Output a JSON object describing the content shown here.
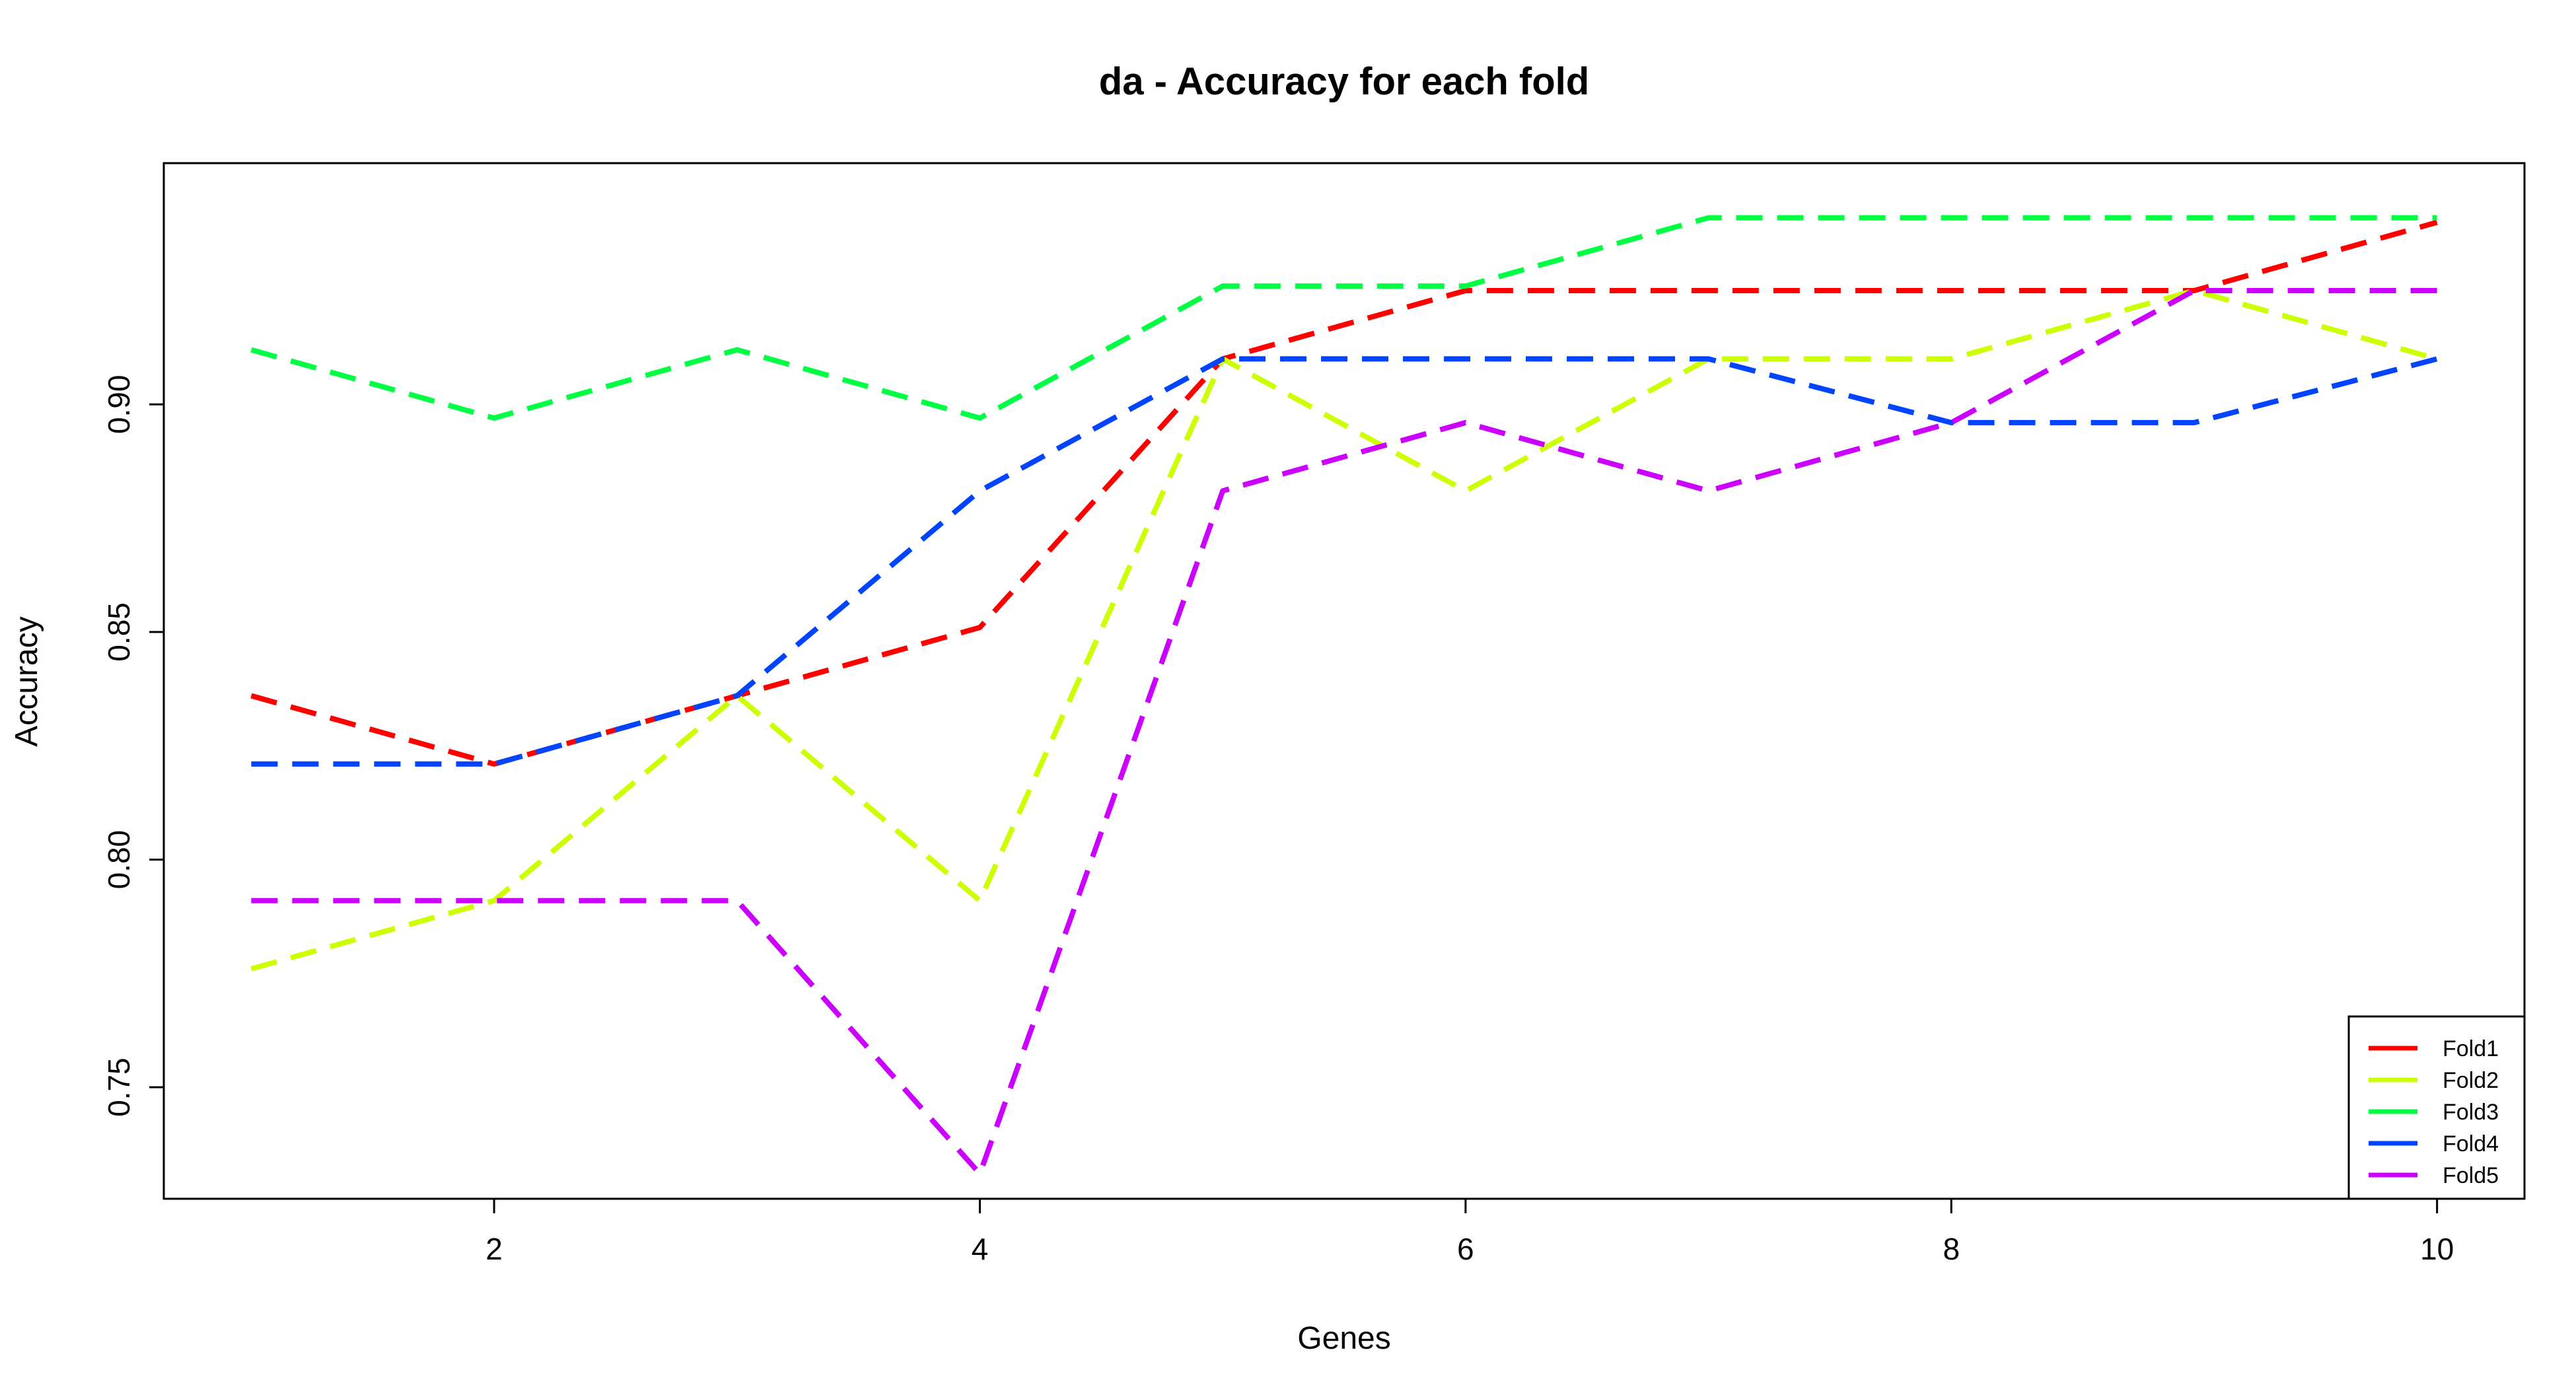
{
  "chart_data": {
    "type": "line",
    "title": "da - Accuracy for each fold",
    "xlabel": "Genes",
    "ylabel": "Accuracy",
    "x": [
      1,
      2,
      3,
      4,
      5,
      6,
      7,
      8,
      9,
      10
    ],
    "xlim": [
      0.64,
      10.36
    ],
    "ylim": [
      0.7255,
      0.953
    ],
    "x_ticks": [
      2,
      4,
      6,
      8,
      10
    ],
    "x_tick_labels": [
      "2",
      "4",
      "6",
      "8",
      "10"
    ],
    "y_ticks": [
      0.75,
      0.8,
      0.85,
      0.9
    ],
    "y_tick_labels": [
      "0.75",
      "0.80",
      "0.85",
      "0.90"
    ],
    "grid": false,
    "line_style": "dashed",
    "legend_position": "bottom-right",
    "series": [
      {
        "name": "Fold1",
        "color": "#FF0000",
        "values": [
          0.836,
          0.821,
          0.836,
          0.851,
          0.91,
          0.925,
          0.925,
          0.925,
          0.925,
          0.94
        ]
      },
      {
        "name": "Fold2",
        "color": "#CCFF00",
        "values": [
          0.776,
          0.791,
          0.836,
          0.791,
          0.91,
          0.881,
          0.91,
          0.91,
          0.925,
          0.91
        ]
      },
      {
        "name": "Fold3",
        "color": "#00FF44",
        "values": [
          0.912,
          0.897,
          0.912,
          0.897,
          0.926,
          0.926,
          0.941,
          0.941,
          0.941,
          0.941
        ]
      },
      {
        "name": "Fold4",
        "color": "#0044FF",
        "values": [
          0.821,
          0.821,
          0.836,
          0.881,
          0.91,
          0.91,
          0.91,
          0.896,
          0.896,
          0.91
        ]
      },
      {
        "name": "Fold5",
        "color": "#CC00FF",
        "values": [
          0.791,
          0.791,
          0.791,
          0.731,
          0.881,
          0.896,
          0.881,
          0.896,
          0.925,
          0.925
        ]
      }
    ]
  }
}
